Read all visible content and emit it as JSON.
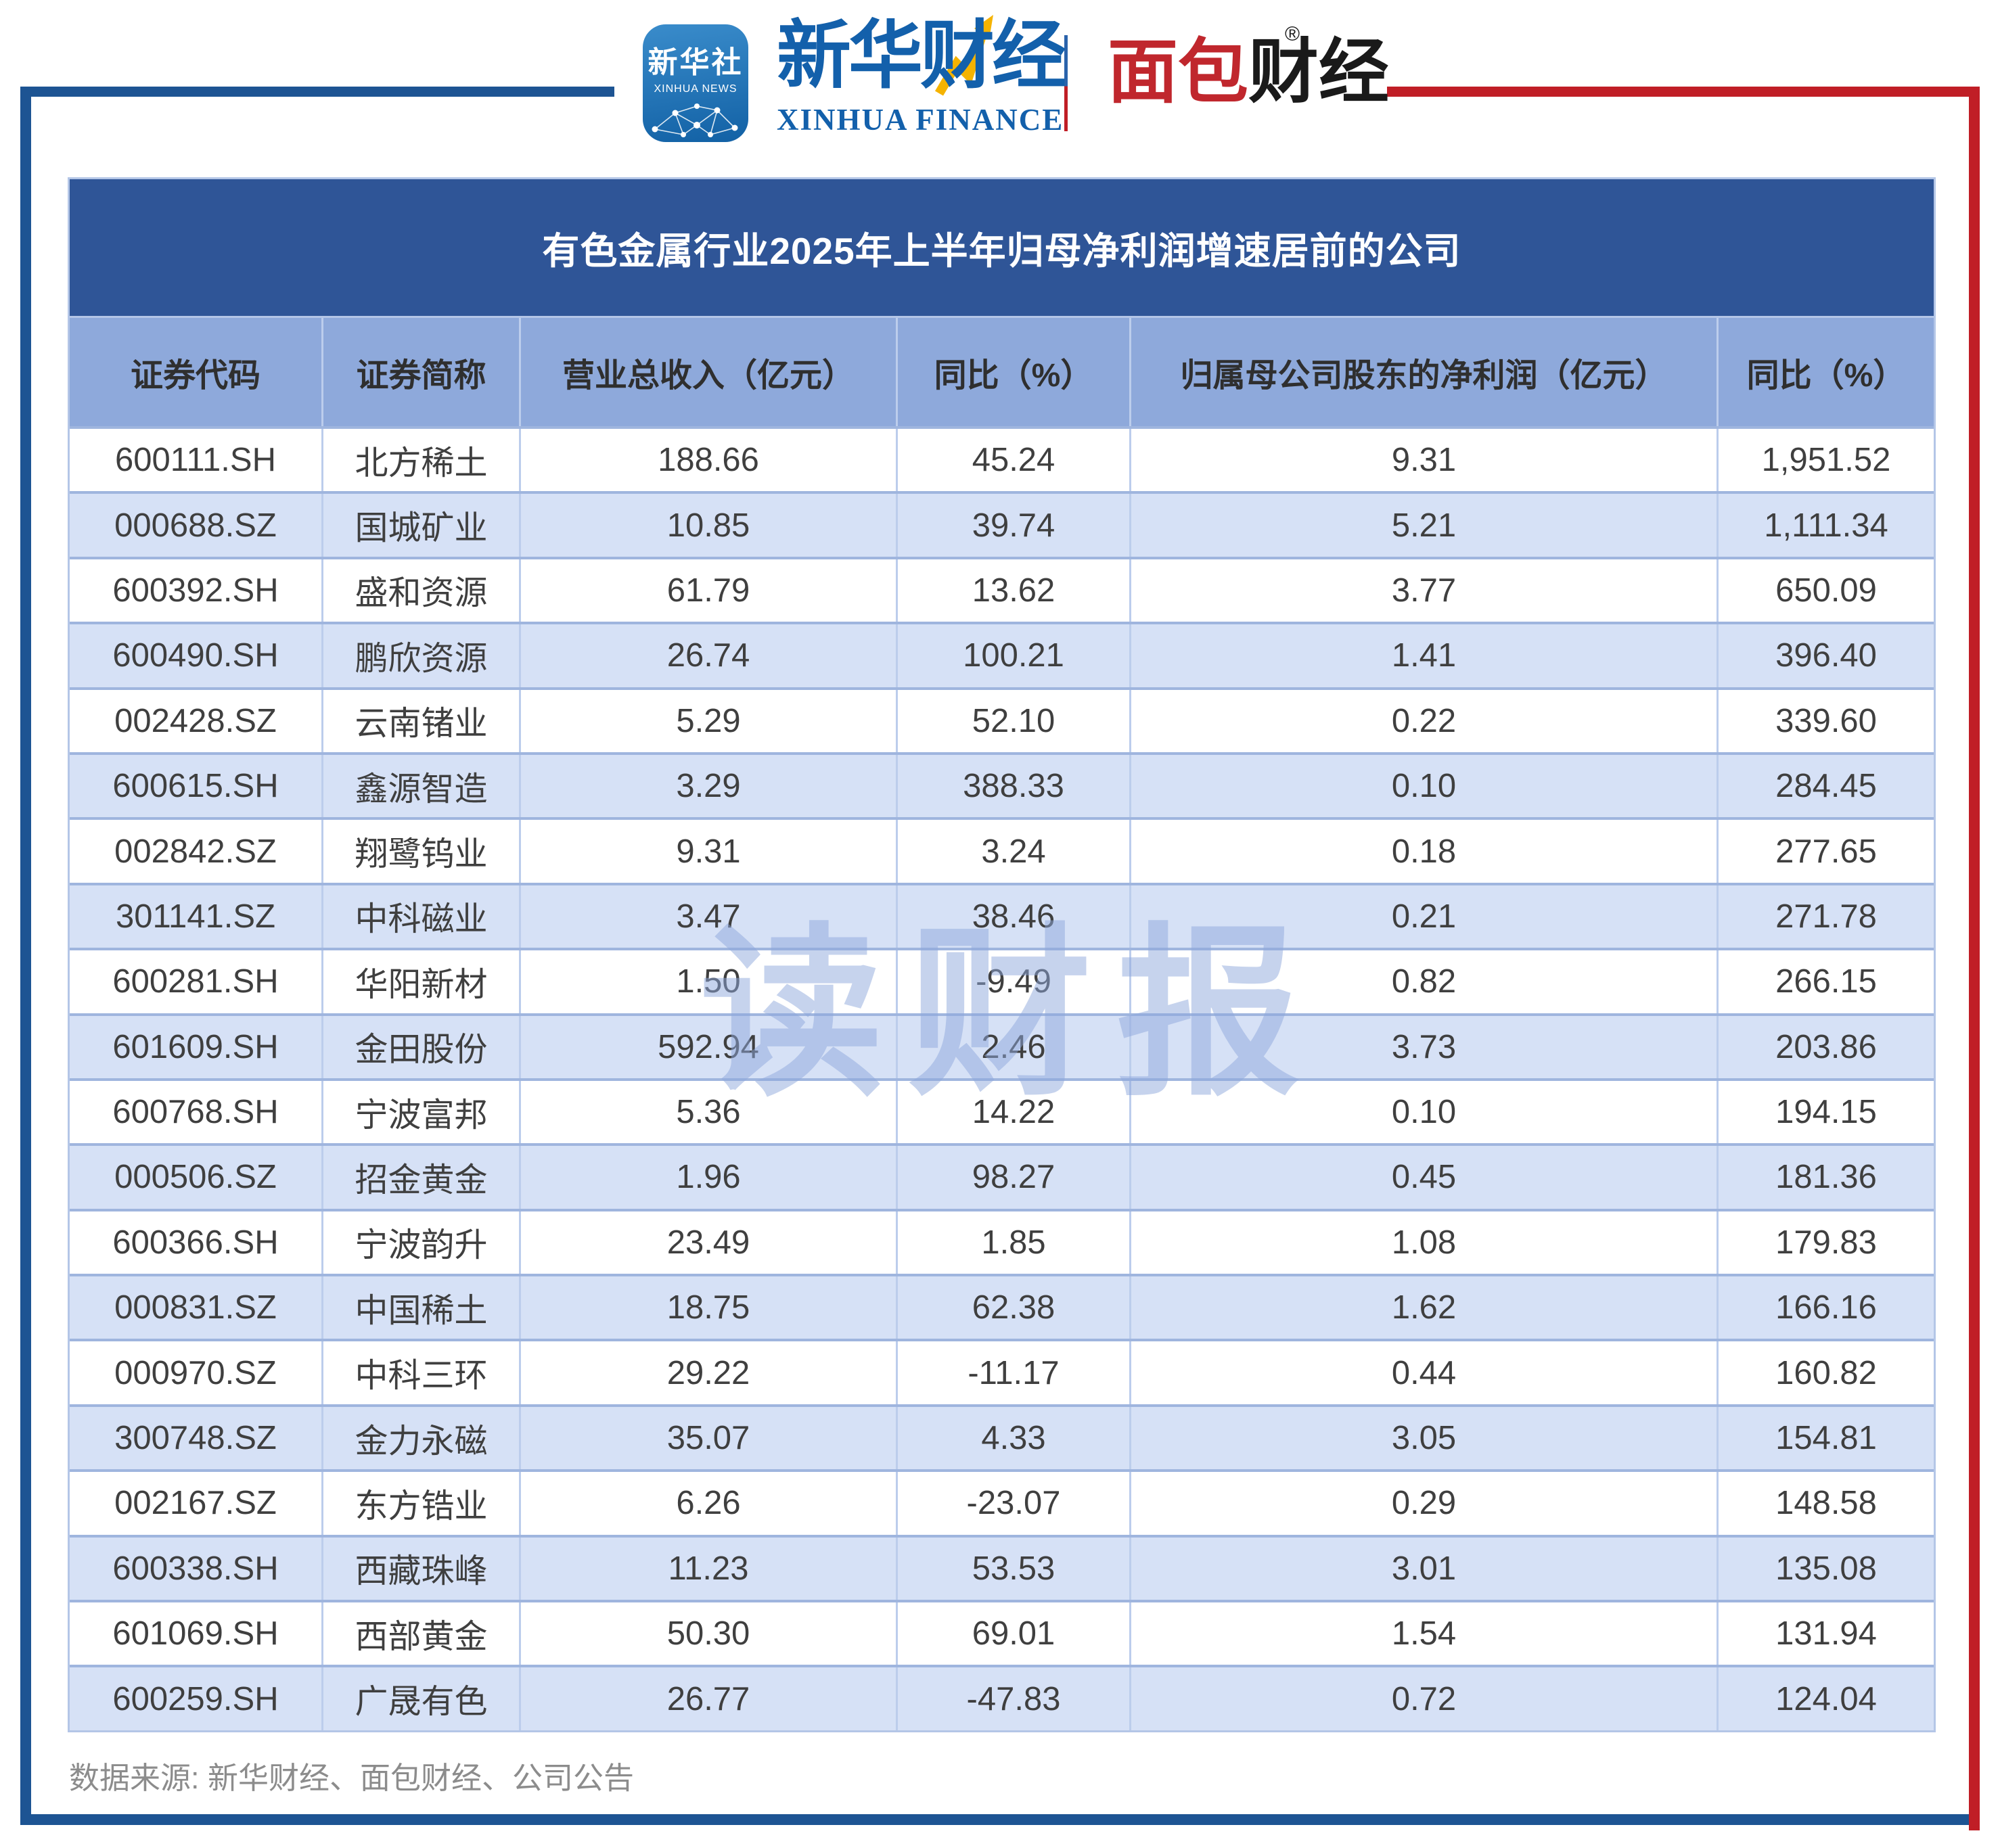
{
  "colors": {
    "title_bar_bg": "#2F5597",
    "header_row_bg": "#8EA9DB",
    "row_alt_bg": "#D6E1F6",
    "row_white_bg": "#FFFFFF",
    "grid_line_v": "#BCCDEC",
    "grid_line_h": "#9FB5DE",
    "table_border": "#B4C6E7",
    "cell_text": "#3F3F3F",
    "header_text": "#2F2F2F",
    "title_text": "#FFFFFF",
    "frame_blue": "#1D5493",
    "frame_red": "#C01E26",
    "xinhua_blue": "#1360AB",
    "mianbao_red": "#C0272D",
    "mianbao_black": "#1A1A1A",
    "footer_text": "#8C8C8C",
    "watermark": "rgba(141,168,219,0.5)",
    "arrow_yellow": "#F5B301",
    "icon_grad_top": "#3A8CCB",
    "icon_grad_bottom": "#1261A5"
  },
  "logos": {
    "xinhua_news_icon": {
      "line1": "新华社",
      "line2": "XINHUA NEWS"
    },
    "xinhua_finance": {
      "cn": "新华财经",
      "en": "XINHUA FINANCE"
    },
    "mianbao_caijing": {
      "part_red": "面包",
      "part_black": "财经",
      "registered_mark": "®"
    }
  },
  "watermark_text": "读财报",
  "chart_data": {
    "type": "table",
    "title": "有色金属行业2025年上半年归母净利润增速居前的公司",
    "columns": [
      "证券代码",
      "证券简称",
      "营业总收入（亿元）",
      "同比（%）",
      "归属母公司股东的净利润（亿元）",
      "同比（%）"
    ],
    "rows": [
      [
        "600111.SH",
        "北方稀土",
        "188.66",
        "45.24",
        "9.31",
        "1,951.52"
      ],
      [
        "000688.SZ",
        "国城矿业",
        "10.85",
        "39.74",
        "5.21",
        "1,111.34"
      ],
      [
        "600392.SH",
        "盛和资源",
        "61.79",
        "13.62",
        "3.77",
        "650.09"
      ],
      [
        "600490.SH",
        "鹏欣资源",
        "26.74",
        "100.21",
        "1.41",
        "396.40"
      ],
      [
        "002428.SZ",
        "云南锗业",
        "5.29",
        "52.10",
        "0.22",
        "339.60"
      ],
      [
        "600615.SH",
        "鑫源智造",
        "3.29",
        "388.33",
        "0.10",
        "284.45"
      ],
      [
        "002842.SZ",
        "翔鹭钨业",
        "9.31",
        "3.24",
        "0.18",
        "277.65"
      ],
      [
        "301141.SZ",
        "中科磁业",
        "3.47",
        "38.46",
        "0.21",
        "271.78"
      ],
      [
        "600281.SH",
        "华阳新材",
        "1.50",
        "-9.49",
        "0.82",
        "266.15"
      ],
      [
        "601609.SH",
        "金田股份",
        "592.94",
        "2.46",
        "3.73",
        "203.86"
      ],
      [
        "600768.SH",
        "宁波富邦",
        "5.36",
        "14.22",
        "0.10",
        "194.15"
      ],
      [
        "000506.SZ",
        "招金黄金",
        "1.96",
        "98.27",
        "0.45",
        "181.36"
      ],
      [
        "600366.SH",
        "宁波韵升",
        "23.49",
        "1.85",
        "1.08",
        "179.83"
      ],
      [
        "000831.SZ",
        "中国稀土",
        "18.75",
        "62.38",
        "1.62",
        "166.16"
      ],
      [
        "000970.SZ",
        "中科三环",
        "29.22",
        "-11.17",
        "0.44",
        "160.82"
      ],
      [
        "300748.SZ",
        "金力永磁",
        "35.07",
        "4.33",
        "3.05",
        "154.81"
      ],
      [
        "002167.SZ",
        "东方锆业",
        "6.26",
        "-23.07",
        "0.29",
        "148.58"
      ],
      [
        "600338.SH",
        "西藏珠峰",
        "11.23",
        "53.53",
        "3.01",
        "135.08"
      ],
      [
        "601069.SH",
        "西部黄金",
        "50.30",
        "69.01",
        "1.54",
        "131.94"
      ],
      [
        "600259.SH",
        "广晟有色",
        "26.77",
        "-47.83",
        "0.72",
        "124.04"
      ]
    ]
  },
  "footer": {
    "source": "数据来源: 新华财经、面包财经、公司公告"
  }
}
